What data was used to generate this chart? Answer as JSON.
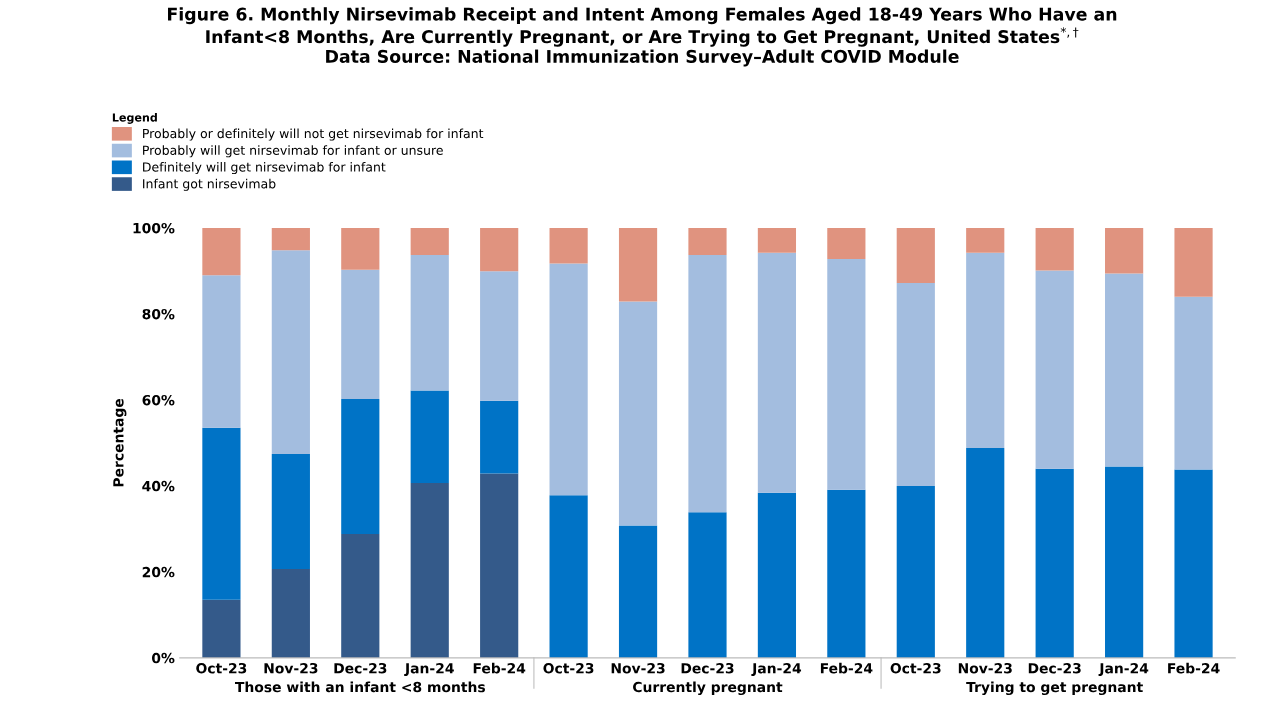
{
  "chart_data": {
    "type": "bar",
    "stacked": true,
    "title": "Figure 6. Monthly Nirsevimab Receipt and Intent Among Females Aged 18-49 Years Who Have an\nInfant<8 Months, Are Currently Pregnant, or Are Trying to Get Pregnant, United States$^{*,†}$\nData Source: National Immunization Survey–Adult COVID Module",
    "ylabel": "Percentage",
    "legend_title": "Legend",
    "legend": "top left",
    "grid": false,
    "categories": [
      "Oct-23",
      "Nov-23",
      "Dec-23",
      "Jan-24",
      "Feb-24",
      "Oct-23",
      "Nov-23",
      "Dec-23",
      "Jan-24",
      "Feb-24",
      "Oct-23",
      "Nov-23",
      "Dec-23",
      "Jan-24",
      "Feb-24"
    ],
    "annotations": [
      "Those with an infant <8 months",
      "Currently pregnant",
      "Trying to get pregnant"
    ],
    "ylim": [
      0,
      100
    ],
    "yticks": [
      {
        "value": 0,
        "label": "0%"
      },
      {
        "value": 20,
        "label": "20%"
      },
      {
        "value": 40,
        "label": "40%"
      },
      {
        "value": 60,
        "label": "60%"
      },
      {
        "value": 80,
        "label": "80%"
      },
      {
        "value": 100,
        "label": "100%"
      }
    ],
    "series": [
      {
        "name": "Infant got nirsevimab",
        "color": "#345a8a",
        "values": [
          13.5,
          20.7,
          28.8,
          40.7,
          42.9,
          0,
          0,
          0,
          0,
          0,
          0,
          0,
          0,
          0,
          0
        ]
      },
      {
        "name": "Definitely will get nirsevimab for infant",
        "color": "#0073c6",
        "values": [
          40.0,
          26.7,
          31.4,
          21.5,
          16.9,
          37.8,
          30.8,
          33.9,
          38.4,
          39.1,
          40.0,
          48.8,
          44.0,
          44.5,
          43.8
        ]
      },
      {
        "name": "Probably will get nirsevimab for infant or unsure",
        "color": "#a3bddf",
        "values": [
          35.5,
          47.4,
          30.1,
          31.5,
          30.1,
          53.9,
          52.1,
          59.8,
          55.8,
          53.7,
          47.2,
          45.4,
          46.1,
          44.9,
          40.2
        ]
      },
      {
        "name": "Probably or definitely will not get nirsevimab for infant",
        "color": "#e0937f",
        "values": [
          11.0,
          5.2,
          9.7,
          6.3,
          10.1,
          8.3,
          17.1,
          6.3,
          5.8,
          7.2,
          12.8,
          5.8,
          9.9,
          10.6,
          16.0
        ]
      }
    ]
  }
}
